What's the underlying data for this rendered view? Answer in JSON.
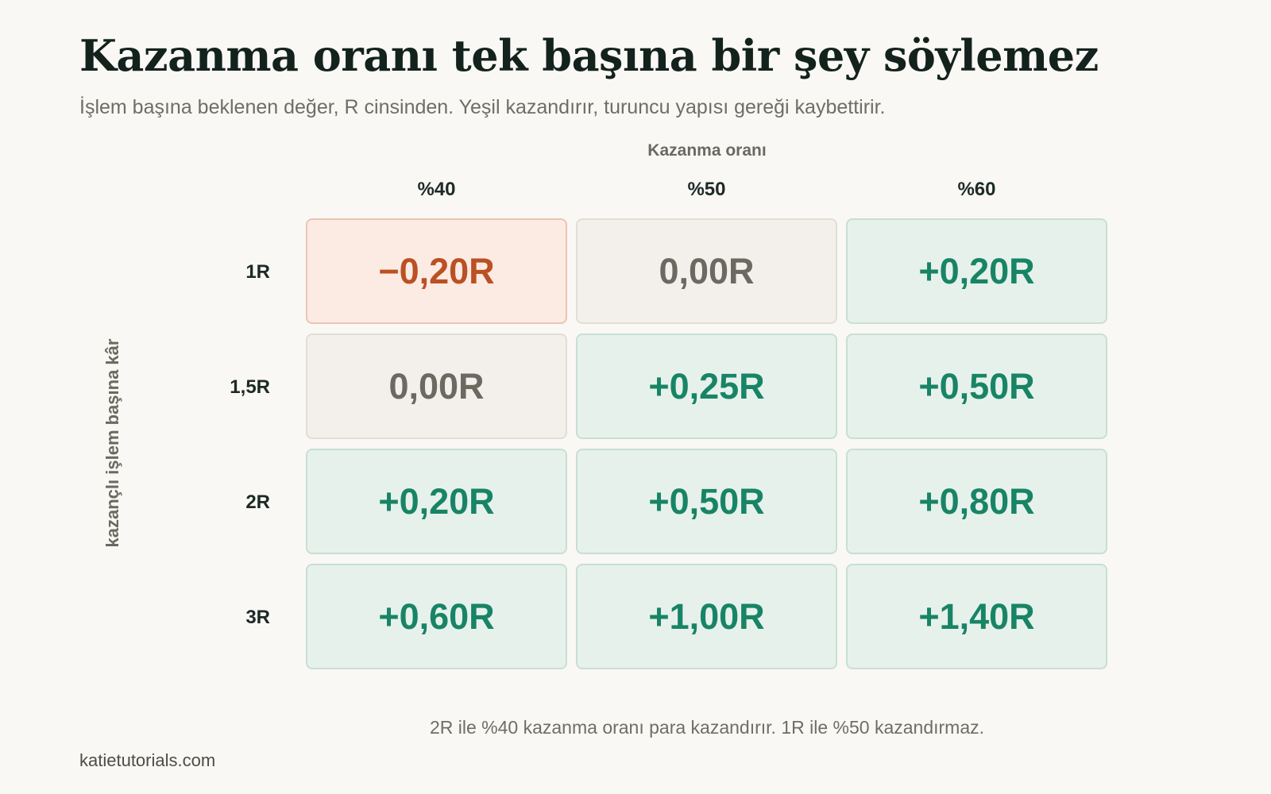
{
  "header": {
    "title": "Kazanma oranı tek başına bir şey söylemez",
    "subtitle": "İşlem başına beklenen değer, R cinsinden. Yeşil kazandırır, turuncu yapısı gereği kaybettirir."
  },
  "footer": {
    "note": "2R ile %40 kazanma oranı para kazandırır. 1R ile %50 kazandırmaz.",
    "source": "katietutorials.com"
  },
  "colors": {
    "positive": "#188466",
    "negative": "#bb5024",
    "neutral": "#6c6960"
  },
  "chart_data": {
    "type": "heatmap",
    "title": "Kazanma oranı tek başına bir şey söylemez",
    "subtitle": "İşlem başına beklenen değer, R cinsinden. Yeşil kazandırır, turuncu yapısı gereği kaybettirir.",
    "xlabel": "Kazanma oranı",
    "ylabel": "kazançlı işlem başına kâr",
    "x_categories": [
      "%40",
      "%50",
      "%60"
    ],
    "y_categories": [
      "1R",
      "1,5R",
      "2R",
      "3R"
    ],
    "values": [
      [
        -0.2,
        0.0,
        0.2
      ],
      [
        0.0,
        0.25,
        0.5
      ],
      [
        0.2,
        0.5,
        0.8
      ],
      [
        0.6,
        1.0,
        1.4
      ]
    ],
    "value_labels": [
      [
        "−0,20R",
        "0,00R",
        "+0,20R"
      ],
      [
        "0,00R",
        "+0,25R",
        "+0,50R"
      ],
      [
        "+0,20R",
        "+0,50R",
        "+0,80R"
      ],
      [
        "+0,60R",
        "+1,00R",
        "+1,40R"
      ]
    ]
  }
}
